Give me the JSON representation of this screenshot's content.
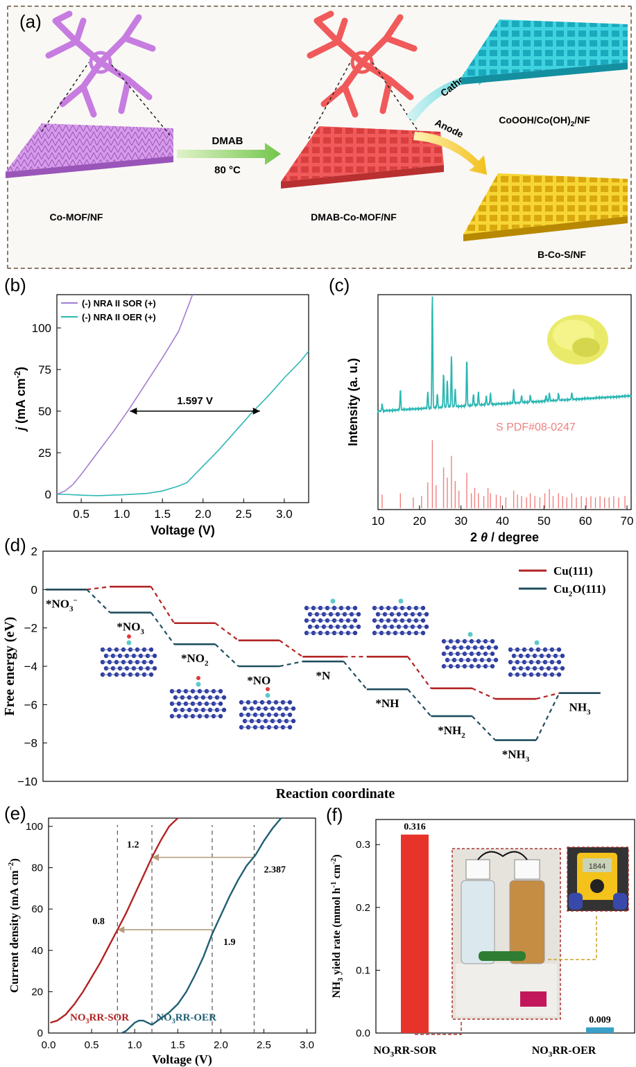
{
  "panel_labels": {
    "a": "(a)",
    "b": "(b)",
    "c": "(c)",
    "d": "(d)",
    "e": "(e)",
    "f": "(f)"
  },
  "panel_a": {
    "label_co_mof": "Co-MOF/NF",
    "label_dmab_co_mof": "DMAB-Co-MOF/NF",
    "label_cooh": "CoOOH/Co(OH)",
    "label_cooh_sub": "2",
    "label_cooh_suffix": "/NF",
    "label_bcos": "B-Co-S/NF",
    "arrow_top": "DMAB",
    "arrow_bottom": "80 °C",
    "cathode": "Cathode",
    "anode": "Anode",
    "colors": {
      "co_mof": "#c77ce0",
      "dmab": "#f05a5a",
      "cathode": "#2cc6d6",
      "anode": "#f2c81a"
    }
  },
  "chart_data": [
    {
      "id": "b",
      "type": "line",
      "xlabel": "Voltage (V)",
      "ylabel_j": "j",
      "ylabel_rest": " (mA cm",
      "ylabel_sup": "-2",
      "ylabel_end": ")",
      "xlim": [
        0.2,
        3.3
      ],
      "ylim": [
        -5,
        120
      ],
      "xticks": [
        "0.5",
        "1.0",
        "1.5",
        "2.0",
        "2.5",
        "3.0"
      ],
      "xtick_values": [
        0.5,
        1.0,
        1.5,
        2.0,
        2.5,
        3.0
      ],
      "yticks": [
        "0",
        "25",
        "50",
        "75",
        "100"
      ],
      "ytick_values": [
        0,
        25,
        50,
        75,
        100
      ],
      "series": [
        {
          "name": "(-) NRA II SOR (+)",
          "color": "#a37bd1",
          "x": [
            0.2,
            0.3,
            0.4,
            0.5,
            0.7,
            0.9,
            1.1,
            1.3,
            1.5,
            1.7,
            1.87
          ],
          "y": [
            0,
            2,
            6,
            12,
            25,
            38,
            52,
            67,
            82,
            98,
            120
          ]
        },
        {
          "name": "(-) NRA II OER (+)",
          "color": "#2bb7b3",
          "x": [
            0.2,
            0.3,
            0.5,
            0.7,
            1.0,
            1.3,
            1.5,
            1.7,
            1.8,
            1.9,
            2.0,
            2.2,
            2.4,
            2.6,
            2.8,
            3.0,
            3.2,
            3.3
          ],
          "y": [
            0,
            0,
            -0.5,
            -0.8,
            -0.3,
            0.5,
            2,
            5,
            7,
            12,
            17,
            27,
            38,
            49,
            59,
            70,
            80,
            86
          ]
        }
      ],
      "annotation": "1.597 V",
      "annotation_y": 50,
      "annotation_x": [
        1.1,
        2.7
      ]
    },
    {
      "id": "c",
      "type": "line",
      "xlabel_pre": "2 ",
      "xlabel_theta": "θ",
      "xlabel_post": " / degree",
      "ylabel": "Intensity  (a. u.)",
      "xlim": [
        10,
        71
      ],
      "xticks": [
        "10",
        "20",
        "30",
        "40",
        "50",
        "60",
        "70"
      ],
      "xtick_values": [
        10,
        20,
        30,
        40,
        50,
        60,
        70
      ],
      "reference_label": "S PDF#08-0247",
      "xrd_color": "#2bb7b3",
      "ref_color": "#f08080",
      "peaks": [
        {
          "x": 11,
          "h": 6
        },
        {
          "x": 15.4,
          "h": 18
        },
        {
          "x": 22,
          "h": 14
        },
        {
          "x": 23.1,
          "h": 100
        },
        {
          "x": 24.3,
          "h": 12
        },
        {
          "x": 25.8,
          "h": 30
        },
        {
          "x": 26.7,
          "h": 24
        },
        {
          "x": 27.7,
          "h": 45
        },
        {
          "x": 28.6,
          "h": 16
        },
        {
          "x": 31.4,
          "h": 41
        },
        {
          "x": 33,
          "h": 10
        },
        {
          "x": 34.2,
          "h": 12
        },
        {
          "x": 36.1,
          "h": 8
        },
        {
          "x": 37.1,
          "h": 10
        },
        {
          "x": 42.7,
          "h": 12
        },
        {
          "x": 44.6,
          "h": 6
        },
        {
          "x": 46.7,
          "h": 6
        },
        {
          "x": 50.5,
          "h": 5
        },
        {
          "x": 51.3,
          "h": 7
        },
        {
          "x": 53.5,
          "h": 6
        },
        {
          "x": 56.7,
          "h": 6
        }
      ],
      "ref_lines": [
        {
          "x": 11,
          "h": 20
        },
        {
          "x": 15.4,
          "h": 22
        },
        {
          "x": 18.5,
          "h": 16
        },
        {
          "x": 20.5,
          "h": 18
        },
        {
          "x": 22,
          "h": 38
        },
        {
          "x": 23.1,
          "h": 100
        },
        {
          "x": 24,
          "h": 34
        },
        {
          "x": 25.8,
          "h": 60
        },
        {
          "x": 26.7,
          "h": 45
        },
        {
          "x": 27.7,
          "h": 77
        },
        {
          "x": 28.6,
          "h": 40
        },
        {
          "x": 29.5,
          "h": 26
        },
        {
          "x": 31.4,
          "h": 52
        },
        {
          "x": 32.5,
          "h": 22
        },
        {
          "x": 33.3,
          "h": 30
        },
        {
          "x": 34.2,
          "h": 22
        },
        {
          "x": 35.5,
          "h": 18
        },
        {
          "x": 36.5,
          "h": 30
        },
        {
          "x": 37.1,
          "h": 22
        },
        {
          "x": 38.5,
          "h": 20
        },
        {
          "x": 39.5,
          "h": 18
        },
        {
          "x": 40.8,
          "h": 16
        },
        {
          "x": 42.7,
          "h": 26
        },
        {
          "x": 43.6,
          "h": 20
        },
        {
          "x": 44.6,
          "h": 18
        },
        {
          "x": 45.8,
          "h": 16
        },
        {
          "x": 46.7,
          "h": 22
        },
        {
          "x": 47.8,
          "h": 18
        },
        {
          "x": 49,
          "h": 16
        },
        {
          "x": 50.2,
          "h": 22
        },
        {
          "x": 51.3,
          "h": 28
        },
        {
          "x": 52.2,
          "h": 18
        },
        {
          "x": 53.5,
          "h": 22
        },
        {
          "x": 54.5,
          "h": 18
        },
        {
          "x": 55.5,
          "h": 16
        },
        {
          "x": 56.7,
          "h": 22
        },
        {
          "x": 57.8,
          "h": 16
        },
        {
          "x": 59,
          "h": 18
        },
        {
          "x": 60.2,
          "h": 16
        },
        {
          "x": 61.3,
          "h": 18
        },
        {
          "x": 62.4,
          "h": 16
        },
        {
          "x": 63.5,
          "h": 18
        },
        {
          "x": 64.6,
          "h": 16
        },
        {
          "x": 65.7,
          "h": 16
        },
        {
          "x": 66.8,
          "h": 18
        },
        {
          "x": 68,
          "h": 16
        },
        {
          "x": 69.5,
          "h": 18
        }
      ]
    },
    {
      "id": "d",
      "type": "line",
      "xlabel": "Reaction coordinate",
      "ylabel": "Free energy (eV)",
      "ylim": [
        -10,
        2
      ],
      "yticks": [
        "2",
        "0",
        "−2",
        "−4",
        "−6",
        "−8",
        "−10"
      ],
      "ytick_values": [
        2,
        0,
        -2,
        -4,
        -6,
        -8,
        -10
      ],
      "legend": [
        {
          "name": "Cu(111)",
          "color": "#b22222"
        },
        {
          "name_pre": "Cu",
          "name_sub": "2",
          "name_post": "O(111)",
          "color": "#1f4e5f"
        }
      ],
      "cu_levels": [
        0,
        0.15,
        -1.75,
        -2.65,
        -3.5,
        -3.5,
        -5.15,
        -5.7,
        -5.4
      ],
      "cu2o_levels": [
        0,
        -1.2,
        -2.85,
        -4.0,
        -3.75,
        -5.2,
        -6.6,
        -7.85,
        -5.4
      ],
      "states": [
        {
          "pre": "*NO",
          "sub": "3",
          "post": "",
          "sup": "−"
        },
        {
          "pre": "*NO",
          "sub": "3",
          "post": ""
        },
        {
          "pre": "*NO",
          "sub": "2",
          "post": ""
        },
        {
          "pre": "*NO",
          "sub": "",
          "post": ""
        },
        {
          "pre": "*N",
          "sub": "",
          "post": ""
        },
        {
          "pre": "*NH",
          "sub": "",
          "post": ""
        },
        {
          "pre": "*NH",
          "sub": "2",
          "post": ""
        },
        {
          "pre": "*NH",
          "sub": "3",
          "post": ""
        },
        {
          "pre": "NH",
          "sub": "3",
          "post": ""
        }
      ]
    },
    {
      "id": "e",
      "type": "line",
      "xlabel": "Voltage (V)",
      "ylabel_pre": "Current density (mA cm",
      "ylabel_sup": "−2",
      "ylabel_post": ")",
      "xlim": [
        0,
        3.1
      ],
      "ylim": [
        0,
        104
      ],
      "xticks": [
        "0.0",
        "0.5",
        "1.0",
        "1.5",
        "2.0",
        "2.5",
        "3.0"
      ],
      "xtick_values": [
        0,
        0.5,
        1.0,
        1.5,
        2.0,
        2.5,
        3.0
      ],
      "yticks": [
        "0",
        "20",
        "40",
        "60",
        "80",
        "100"
      ],
      "ytick_values": [
        0,
        20,
        40,
        60,
        80,
        100
      ],
      "series": [
        {
          "name_pre": "NO",
          "name_sub": "3",
          "name_post": "RR-SOR",
          "color": "#b22222",
          "x": [
            0.02,
            0.1,
            0.2,
            0.3,
            0.4,
            0.5,
            0.6,
            0.7,
            0.8,
            0.9,
            1.0,
            1.1,
            1.2,
            1.3,
            1.4,
            1.5
          ],
          "y": [
            5,
            6,
            9,
            14,
            20,
            27,
            34,
            42,
            50,
            58,
            67,
            76,
            85,
            93,
            100,
            104
          ]
        },
        {
          "name_pre": "NO",
          "name_sub": "3",
          "name_post": "RR-OER",
          "color": "#1f5f73",
          "x": [
            0.85,
            0.9,
            0.95,
            1.0,
            1.05,
            1.1,
            1.15,
            1.2,
            1.3,
            1.4,
            1.5,
            1.6,
            1.7,
            1.8,
            1.9,
            2.0,
            2.1,
            2.2,
            2.3,
            2.4,
            2.5,
            2.6,
            2.7
          ],
          "y": [
            0,
            1,
            3,
            5,
            6,
            6,
            5,
            4,
            7,
            10,
            14,
            20,
            28,
            37,
            48,
            57,
            66,
            74,
            81,
            86,
            93,
            99,
            104
          ]
        }
      ],
      "annotations": [
        {
          "text": "0.8",
          "x": 0.8,
          "y": 50
        },
        {
          "text": "1.2",
          "x": 1.2,
          "y": 85
        },
        {
          "text": "1.9",
          "x": 1.9,
          "y": 50
        },
        {
          "text": "2.387",
          "x": 2.387,
          "y": 85
        }
      ]
    },
    {
      "id": "f",
      "type": "bar",
      "ylabel_pre": "NH",
      "ylabel_sub": "3",
      "ylabel_mid": " yield rate (mmol h",
      "ylabel_sup1": "-1",
      "ylabel_mid2": " cm",
      "ylabel_sup2": "-2",
      "ylabel_post": ")",
      "ylim": [
        0,
        0.34
      ],
      "yticks": [
        "0.0",
        "0.1",
        "0.2",
        "0.3"
      ],
      "ytick_values": [
        0,
        0.1,
        0.2,
        0.3
      ],
      "categories": [
        {
          "pre": "NO",
          "sub": "3",
          "post": "RR-SOR"
        },
        {
          "pre": "NO",
          "sub": "3",
          "post": "RR-OER"
        }
      ],
      "values": [
        0.316,
        0.009
      ],
      "value_labels": [
        "0.316",
        "0.009"
      ],
      "colors": [
        "#e8332a",
        "#3aa0c8"
      ],
      "photo_meter": "1844"
    }
  ]
}
